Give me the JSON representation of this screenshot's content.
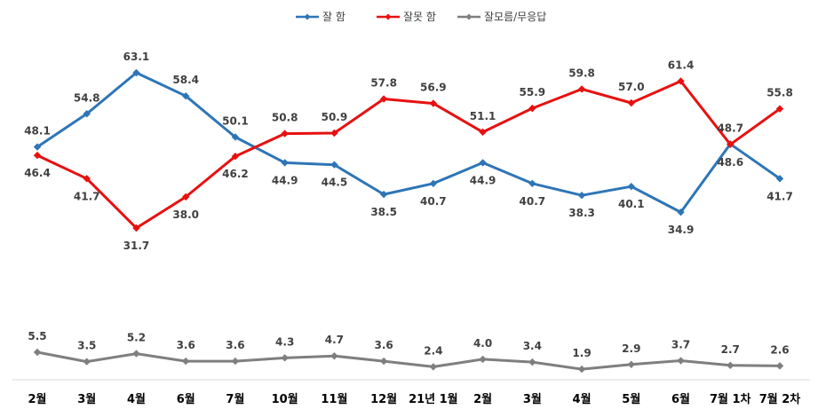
{
  "chart_data": {
    "type": "line",
    "categories": [
      "2월",
      "3월",
      "4월",
      "6월",
      "7월",
      "10월",
      "11월",
      "12월",
      "21년 1월",
      "2월",
      "3월",
      "4월",
      "5월",
      "6월",
      "7월 1차",
      "7월 2차"
    ],
    "series": [
      {
        "name": "잘 함",
        "color": "#2E75B6",
        "values": [
          48.1,
          54.8,
          63.1,
          58.4,
          50.1,
          44.9,
          44.5,
          38.5,
          40.7,
          44.9,
          40.7,
          38.3,
          40.1,
          34.9,
          48.7,
          41.7
        ]
      },
      {
        "name": "잘못 함",
        "color": "#E81010",
        "values": [
          46.4,
          41.7,
          31.7,
          38.0,
          46.2,
          50.8,
          50.9,
          57.8,
          56.9,
          51.1,
          55.9,
          59.8,
          57.0,
          61.4,
          48.6,
          55.8
        ]
      },
      {
        "name": "잘모름/무응답",
        "color": "#7F7F7F",
        "values": [
          5.5,
          3.5,
          5.2,
          3.6,
          3.6,
          4.3,
          4.7,
          3.6,
          2.4,
          4.0,
          3.4,
          1.9,
          2.9,
          3.7,
          2.7,
          2.6
        ]
      }
    ],
    "legend": "top-center",
    "grid": false
  }
}
